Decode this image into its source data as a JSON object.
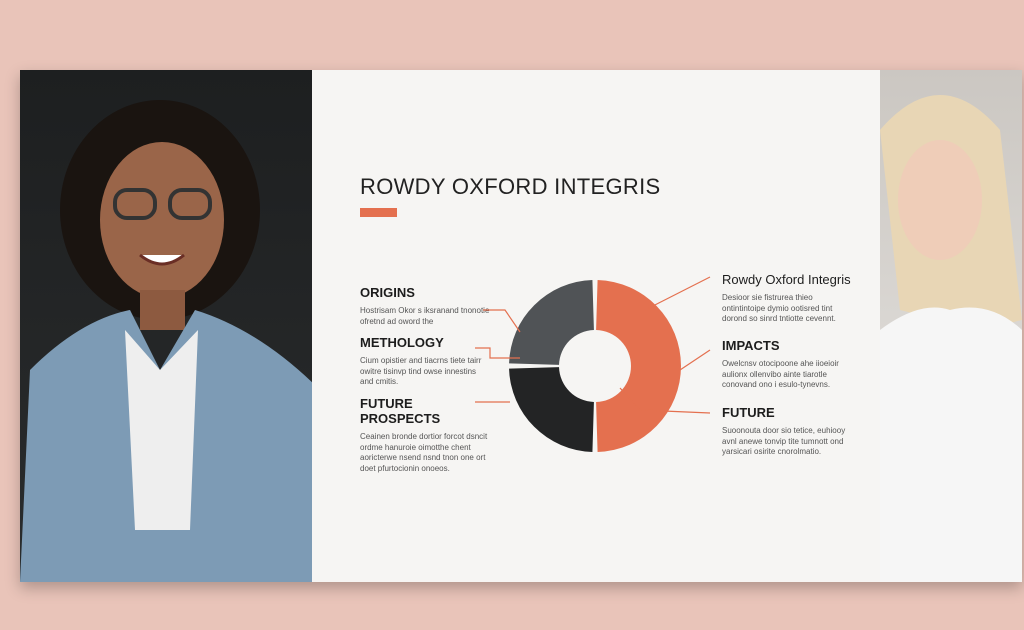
{
  "title": "ROWDY OXFORD INTEGRIS",
  "colors": {
    "accent": "#e4704f",
    "gray": "#505356",
    "dark": "#232425",
    "background": "#e9c4b9"
  },
  "left_blocks": [
    {
      "heading": "ORIGINS",
      "body": "Hostrisam Okor s iksranand tnonotie ofretnd ad oword the"
    },
    {
      "heading": "METHOLOGY",
      "body": "Cium opistier and tiacrns tiete tairr owitre tisinvp tind owse innestins and cmitis."
    },
    {
      "heading": "FUTURE PROSPECTS",
      "body": "Ceainen bronde dortior forcot dsncit ordme hanuroie oimotthe chent aoricterwe nsend nsnd tnon one ort doet pfurtocionin onoeos."
    }
  ],
  "right_blocks": [
    {
      "heading": "Rowdy Oxford Integris",
      "body": "Desioor sie fistrurea thieo ontintintoipe dymio ootisred tint dorond so sinrd tntiotte cevennt."
    },
    {
      "heading": "IMPACTS",
      "body": "Owelcnsv otocipoone ahe iioeioir aulionx ollenvibo ainte tiarotle conovand ono i esulo-tynevns."
    },
    {
      "heading": "FUTURE",
      "body": "Suoonouta door sio tetice, euhiooy avnl anewe tonvip tite tumnott ond yarsicari osirite cnorolmatio."
    }
  ],
  "donut": {
    "segments": [
      {
        "value": 50,
        "color": "#e4704f"
      },
      {
        "value": 25,
        "color": "#232425"
      },
      {
        "value": 25,
        "color": "#505356"
      }
    ]
  }
}
